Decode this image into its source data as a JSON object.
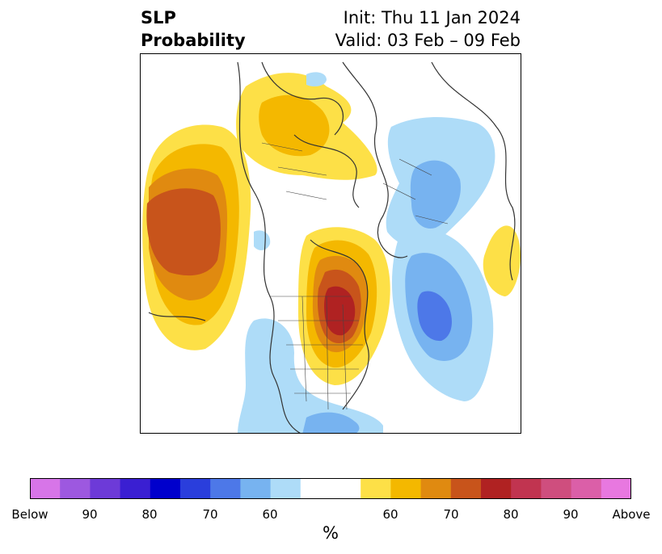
{
  "header": {
    "variable": "SLP",
    "product": "Probability",
    "init": "Init: Thu 11 Jan 2024",
    "valid": "Valid: 03 Feb – 09 Feb"
  },
  "colorbar": {
    "unit": "%",
    "colors": [
      "#d775e8",
      "#9d58e0",
      "#6d3ad8",
      "#3a1fd2",
      "#0000cc",
      "#2a3edc",
      "#4d78e8",
      "#77b3f0",
      "#aedcf8",
      "#ffffff",
      "#ffffff",
      "#fde047",
      "#f4b800",
      "#e08a10",
      "#c8541b",
      "#b02222",
      "#c13450",
      "#cf4e7e",
      "#db5fa8",
      "#e878e0"
    ],
    "tick_labels": [
      "Below",
      "90",
      "80",
      "70",
      "60",
      "60",
      "70",
      "80",
      "90",
      "Above"
    ]
  },
  "map": {
    "layers": [
      {
        "name": "above-normal-pacific",
        "level": "60-75",
        "colors": [
          "#fde047",
          "#f4b800",
          "#e08a10",
          "#c8541b"
        ]
      },
      {
        "name": "above-normal-canada",
        "level": "60-80",
        "colors": [
          "#fde047",
          "#f4b800",
          "#e08a10",
          "#c8541b",
          "#b02222"
        ]
      },
      {
        "name": "above-normal-scandinavia-europe",
        "level": "60-65",
        "colors": [
          "#fde047",
          "#f4b800"
        ]
      },
      {
        "name": "above-normal-east-asia",
        "level": "60",
        "colors": [
          "#fde047"
        ]
      },
      {
        "name": "below-normal-atlantic",
        "level": "60-75",
        "colors": [
          "#aedcf8",
          "#77b3f0",
          "#4d78e8"
        ]
      },
      {
        "name": "below-normal-siberia",
        "level": "60-70",
        "colors": [
          "#aedcf8",
          "#77b3f0"
        ]
      },
      {
        "name": "below-normal-north-america-south",
        "level": "60-65",
        "colors": [
          "#aedcf8",
          "#77b3f0"
        ]
      }
    ]
  }
}
